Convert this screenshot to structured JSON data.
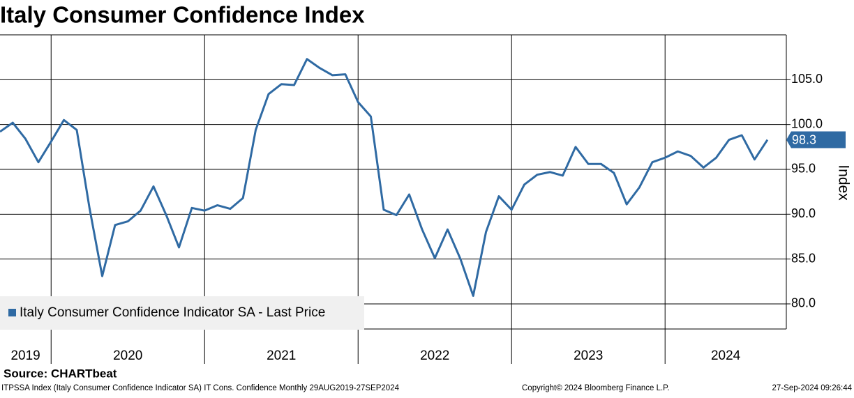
{
  "chart_data": {
    "type": "line",
    "title": "Italy Consumer Confidence Index",
    "y_label": "Index",
    "source": "Source: CHARTbeat",
    "footer": [
      "ITPSSA Index (Italy Consumer Confidence Indicator SA) IT Cons. Confidence  Monthly 29AUG2019-27SEP2024",
      "Copyright© 2024 Bloomberg Finance L.P.",
      "27-Sep-2024 09:26:44"
    ],
    "x": [
      2019.667,
      2019.75,
      2019.833,
      2019.917,
      2020,
      2020.083,
      2020.167,
      2020.25,
      2020.333,
      2020.417,
      2020.5,
      2020.583,
      2020.667,
      2020.75,
      2020.833,
      2020.917,
      2021,
      2021.083,
      2021.167,
      2021.25,
      2021.333,
      2021.417,
      2021.5,
      2021.583,
      2021.667,
      2021.75,
      2021.833,
      2021.917,
      2022,
      2022.083,
      2022.167,
      2022.25,
      2022.333,
      2022.417,
      2022.5,
      2022.583,
      2022.667,
      2022.75,
      2022.833,
      2022.917,
      2023,
      2023.083,
      2023.167,
      2023.25,
      2023.333,
      2023.417,
      2023.5,
      2023.583,
      2023.667,
      2023.75,
      2023.833,
      2023.917,
      2024,
      2024.083,
      2024.167,
      2024.25,
      2024.333,
      2024.417,
      2024.5,
      2024.583,
      2024.667
    ],
    "series": [
      {
        "name": "Italy Consumer Confidence Indicator SA - Last Price",
        "color": "#2f6aa3",
        "values": [
          99.2,
          100.2,
          98.4,
          95.8,
          98.1,
          100.5,
          99.4,
          90.7,
          83.1,
          88.8,
          89.2,
          90.4,
          93.1,
          89.9,
          86.3,
          90.7,
          90.4,
          91.0,
          90.6,
          91.8,
          99.4,
          103.4,
          104.5,
          104.4,
          107.3,
          106.3,
          105.5,
          105.6,
          102.5,
          100.9,
          90.5,
          89.9,
          92.2,
          88.3,
          85.1,
          88.3,
          85.0,
          80.9,
          88.0,
          92.0,
          90.5,
          93.3,
          94.4,
          94.7,
          94.3,
          97.5,
          95.6,
          95.6,
          94.6,
          91.1,
          93.0,
          95.8,
          96.3,
          97.0,
          96.5,
          95.2,
          96.3,
          98.3,
          98.8,
          96.1,
          98.3
        ]
      }
    ],
    "xlim": [
      2019.667,
      2024.79
    ],
    "xticks": [
      2019,
      2020,
      2021,
      2022,
      2023,
      2024
    ],
    "ylim": [
      77.2,
      110
    ],
    "yticks": [
      {
        "value": 80,
        "label": "80.0"
      },
      {
        "value": 85,
        "label": "85.0"
      },
      {
        "value": 90,
        "label": "90.0"
      },
      {
        "value": 95,
        "label": "95.0"
      },
      {
        "value": 100,
        "label": "100.0"
      },
      {
        "value": 105,
        "label": "105.0"
      }
    ],
    "grid": true,
    "legend": "lower left"
  }
}
